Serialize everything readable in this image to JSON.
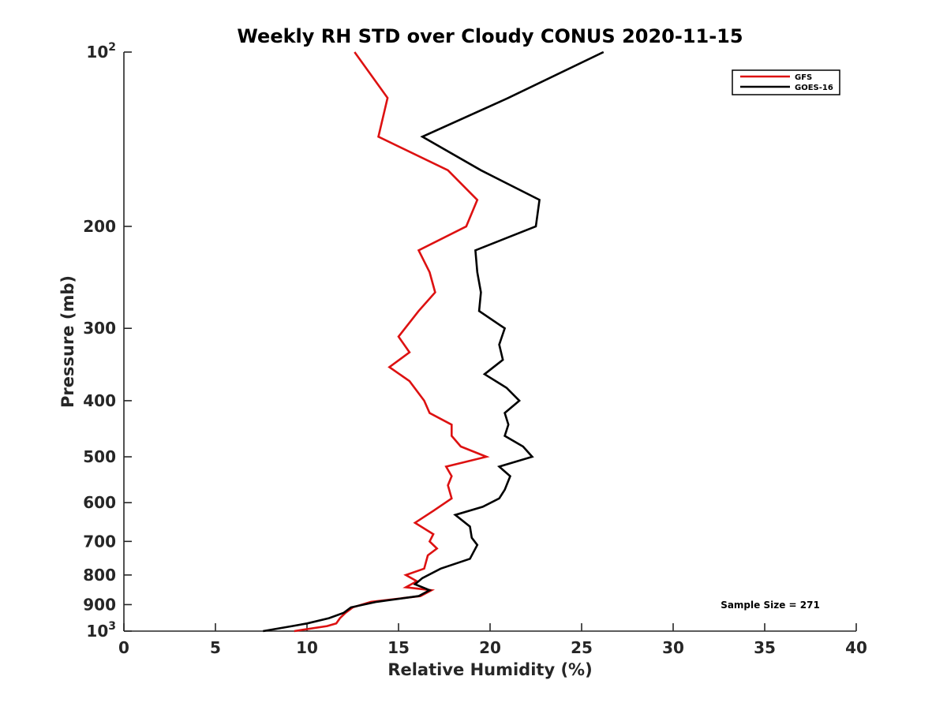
{
  "chart_data": {
    "type": "line",
    "title": "Weekly RH STD over Cloudy CONUS 2020-11-15",
    "xlabel": "Relative Humidity (%)",
    "ylabel": "Pressure (mb)",
    "xlim": [
      0,
      40
    ],
    "ylim": [
      100,
      1000
    ],
    "y_scale": "log",
    "y_reversed": true,
    "x_ticks": [
      0,
      5,
      10,
      15,
      20,
      25,
      30,
      35,
      40
    ],
    "x_tick_labels": [
      "0",
      "5",
      "10",
      "15",
      "20",
      "25",
      "30",
      "35",
      "40"
    ],
    "y_ticks": [
      100,
      200,
      300,
      400,
      500,
      600,
      700,
      800,
      900,
      1000
    ],
    "y_tick_labels": [
      {
        "base": "10",
        "exp": "2"
      },
      {
        "base": "200",
        "exp": ""
      },
      {
        "base": "300",
        "exp": ""
      },
      {
        "base": "400",
        "exp": ""
      },
      {
        "base": "500",
        "exp": ""
      },
      {
        "base": "600",
        "exp": ""
      },
      {
        "base": "700",
        "exp": ""
      },
      {
        "base": "800",
        "exp": ""
      },
      {
        "base": "900",
        "exp": ""
      },
      {
        "base": "10",
        "exp": "3"
      }
    ],
    "grid": false,
    "legend_position": "top-right",
    "annotation": "Sample Size = 271",
    "series": [
      {
        "name": "GFS",
        "color": "#dd1111",
        "points": [
          [
            12.6,
            100
          ],
          [
            14.4,
            120
          ],
          [
            13.9,
            140
          ],
          [
            17.7,
            160
          ],
          [
            19.3,
            180
          ],
          [
            18.7,
            200
          ],
          [
            16.1,
            220
          ],
          [
            16.7,
            240
          ],
          [
            17.0,
            260
          ],
          [
            16.1,
            280
          ],
          [
            15.0,
            310
          ],
          [
            15.6,
            330
          ],
          [
            14.5,
            350
          ],
          [
            15.6,
            370
          ],
          [
            16.4,
            400
          ],
          [
            16.7,
            420
          ],
          [
            17.9,
            440
          ],
          [
            17.9,
            460
          ],
          [
            18.4,
            480
          ],
          [
            19.8,
            500
          ],
          [
            17.6,
            520
          ],
          [
            17.9,
            540
          ],
          [
            17.7,
            560
          ],
          [
            17.9,
            590
          ],
          [
            16.9,
            620
          ],
          [
            15.9,
            650
          ],
          [
            16.9,
            680
          ],
          [
            16.7,
            700
          ],
          [
            17.1,
            720
          ],
          [
            16.6,
            740
          ],
          [
            16.4,
            780
          ],
          [
            15.4,
            800
          ],
          [
            16.0,
            820
          ],
          [
            15.4,
            840
          ],
          [
            16.8,
            850
          ],
          [
            16.2,
            870
          ],
          [
            13.5,
            890
          ],
          [
            12.5,
            910
          ],
          [
            12.1,
            930
          ],
          [
            11.8,
            950
          ],
          [
            11.6,
            970
          ],
          [
            11.1,
            980
          ],
          [
            9.3,
            1000
          ]
        ]
      },
      {
        "name": "GOES-16",
        "color": "#000000",
        "points": [
          [
            26.2,
            100
          ],
          [
            21.0,
            120
          ],
          [
            16.3,
            140
          ],
          [
            19.5,
            160
          ],
          [
            22.7,
            180
          ],
          [
            22.5,
            200
          ],
          [
            19.2,
            220
          ],
          [
            19.3,
            240
          ],
          [
            19.5,
            260
          ],
          [
            19.4,
            280
          ],
          [
            20.8,
            300
          ],
          [
            20.5,
            320
          ],
          [
            20.7,
            340
          ],
          [
            19.7,
            360
          ],
          [
            20.9,
            380
          ],
          [
            21.6,
            400
          ],
          [
            20.8,
            420
          ],
          [
            21.0,
            440
          ],
          [
            20.8,
            460
          ],
          [
            21.8,
            480
          ],
          [
            22.3,
            500
          ],
          [
            20.5,
            520
          ],
          [
            21.1,
            540
          ],
          [
            20.8,
            570
          ],
          [
            20.5,
            590
          ],
          [
            19.6,
            610
          ],
          [
            18.1,
            630
          ],
          [
            18.9,
            660
          ],
          [
            19.0,
            690
          ],
          [
            19.3,
            710
          ],
          [
            18.9,
            750
          ],
          [
            17.3,
            780
          ],
          [
            16.3,
            810
          ],
          [
            15.9,
            830
          ],
          [
            16.7,
            850
          ],
          [
            16.1,
            870
          ],
          [
            13.8,
            890
          ],
          [
            12.4,
            910
          ],
          [
            12.0,
            930
          ],
          [
            11.2,
            950
          ],
          [
            10.0,
            970
          ],
          [
            9.2,
            980
          ],
          [
            7.6,
            1000
          ]
        ]
      }
    ]
  }
}
